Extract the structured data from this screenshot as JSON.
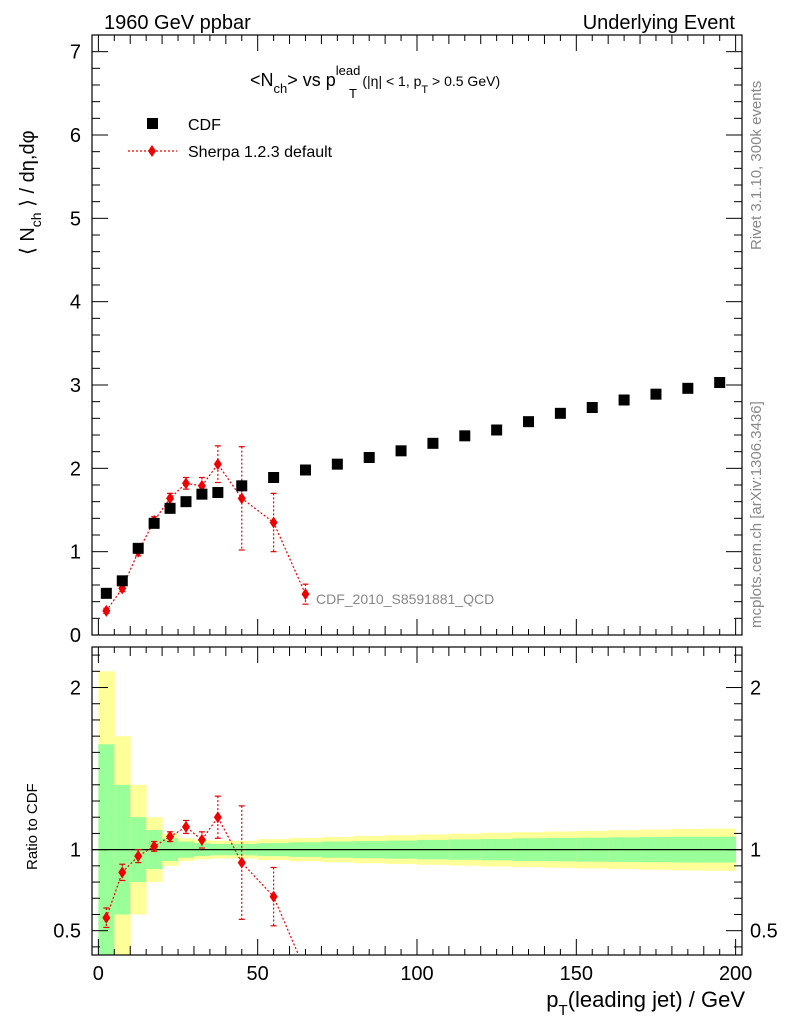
{
  "header": {
    "left": "1960 GeV ppbar",
    "right": "Underlying Event"
  },
  "title": {
    "main_pre": "<N",
    "main_sub": "ch",
    "main_mid": "> vs p",
    "main_sup": "lead",
    "main_sub2": "T",
    "cut_pre": "(|η| < 1, p",
    "cut_sub": "T",
    "cut_post": " > 0.5 GeV)"
  },
  "side_labels": {
    "rivet": "Rivet 3.1.10,  300k events",
    "mcplots": "mcplots.cern.ch [arXiv:1306.3436]"
  },
  "watermark": "CDF_2010_S8591881_QCD",
  "axes": {
    "top_ylabel_pre": "⟨ N",
    "top_ylabel_sub": "ch",
    "top_ylabel_post": " ⟩ / dη,dφ",
    "bottom_ylabel": "Ratio to CDF",
    "xlabel_pre": "p",
    "xlabel_sub": "T",
    "xlabel_post": "(leading jet) / GeV"
  },
  "colors": {
    "data": "#000000",
    "mc": "#ee0000",
    "band_inner": "#99ff99",
    "band_outer": "#ffff99"
  },
  "chart_data": [
    {
      "type": "scatter",
      "panel": "main",
      "xlim": [
        -2,
        202
      ],
      "ylim": [
        0,
        7.2
      ],
      "yticks": [
        0,
        1,
        2,
        3,
        4,
        5,
        6,
        7
      ],
      "xticks": [
        0,
        50,
        100,
        150,
        200
      ],
      "xtick_labels": [
        "0",
        "50",
        "100",
        "150",
        "200"
      ],
      "legend_position": "top-left",
      "series": [
        {
          "name": "CDF",
          "marker": "square",
          "x": [
            2.5,
            7.5,
            12.5,
            17.5,
            22.5,
            27.5,
            32.5,
            37.5,
            45,
            55,
            65,
            75,
            85,
            95,
            105,
            115,
            125,
            135,
            145,
            155,
            165,
            175,
            185,
            195
          ],
          "y": [
            0.5,
            0.65,
            1.04,
            1.34,
            1.52,
            1.6,
            1.69,
            1.71,
            1.79,
            1.89,
            1.98,
            2.05,
            2.13,
            2.21,
            2.3,
            2.39,
            2.46,
            2.56,
            2.66,
            2.73,
            2.82,
            2.89,
            2.96,
            3.03
          ]
        },
        {
          "name": "Sherpa 1.2.3 default",
          "marker": "diamond",
          "x": [
            2.5,
            7.5,
            12.5,
            17.5,
            22.5,
            27.5,
            32.5,
            37.5,
            45,
            55,
            65
          ],
          "y": [
            0.29,
            0.56,
            1.0,
            1.37,
            1.64,
            1.82,
            1.79,
            2.05,
            1.64,
            1.35,
            0.49
          ],
          "yerr": [
            0.03,
            0.04,
            0.05,
            0.05,
            0.06,
            0.07,
            0.1,
            0.22,
            0.62,
            0.35,
            0.12
          ]
        }
      ]
    },
    {
      "type": "line",
      "panel": "ratio",
      "xlim": [
        -2,
        202
      ],
      "ylim": [
        0.35,
        2.25
      ],
      "yticks": [
        0.5,
        1,
        2
      ],
      "ylabel": "Ratio to CDF",
      "reference": 1,
      "band_edges": [
        0,
        5,
        10,
        15,
        20,
        25,
        30,
        35,
        40,
        50,
        60,
        70,
        80,
        90,
        100,
        110,
        120,
        130,
        140,
        150,
        160,
        170,
        180,
        190,
        200
      ],
      "band_inner_halfwidth": [
        0.65,
        0.4,
        0.2,
        0.12,
        0.07,
        0.05,
        0.04,
        0.035,
        0.035,
        0.04,
        0.045,
        0.05,
        0.053,
        0.056,
        0.06,
        0.063,
        0.066,
        0.07,
        0.072,
        0.074,
        0.076,
        0.078,
        0.08,
        0.08
      ],
      "band_outer_halfwidth": [
        1.1,
        0.7,
        0.4,
        0.2,
        0.1,
        0.07,
        0.06,
        0.055,
        0.055,
        0.065,
        0.072,
        0.078,
        0.084,
        0.089,
        0.094,
        0.099,
        0.104,
        0.108,
        0.112,
        0.116,
        0.12,
        0.124,
        0.128,
        0.13
      ],
      "series": [
        {
          "name": "Sherpa 1.2.3 default",
          "x": [
            2.5,
            7.5,
            12.5,
            17.5,
            22.5,
            27.5,
            32.5,
            37.5,
            45,
            55,
            65
          ],
          "y": [
            0.58,
            0.86,
            0.96,
            1.02,
            1.08,
            1.14,
            1.06,
            1.2,
            0.92,
            0.71,
            0.25
          ],
          "yerr": [
            0.06,
            0.05,
            0.04,
            0.03,
            0.03,
            0.04,
            0.05,
            0.13,
            0.35,
            0.18,
            0.06
          ]
        }
      ]
    }
  ]
}
